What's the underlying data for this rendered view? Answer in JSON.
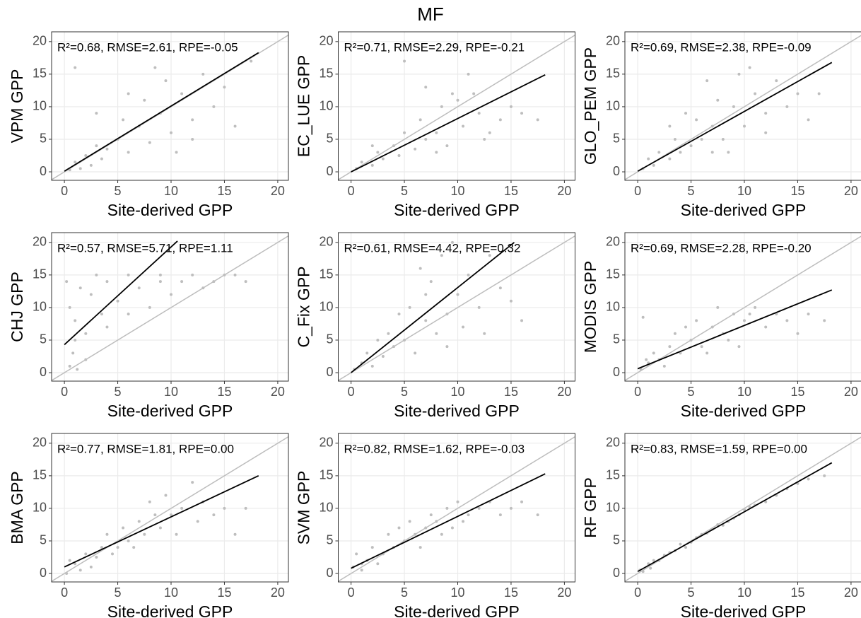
{
  "title": "MF",
  "chart_data": [
    {
      "type": "scatter",
      "ylabel": "VPM GPP",
      "xlabel": "Site-derived GPP",
      "annotation": "R²=0.68, RMSE=2.61, RPE=-0.05",
      "xlim": [
        -1.2,
        21
      ],
      "ylim": [
        -1.3,
        21.5
      ],
      "xticks": [
        0,
        5,
        10,
        15,
        20
      ],
      "yticks": [
        0,
        5,
        10,
        15,
        20
      ],
      "grid": true,
      "color": "#bebebe",
      "line_color": "#000000",
      "x": [
        0.5,
        1,
        1.5,
        2,
        2.5,
        3,
        3.5,
        4,
        5,
        5.5,
        6,
        7,
        7.5,
        8,
        9,
        9.5,
        10,
        11,
        12,
        13,
        14,
        15,
        16,
        17.5,
        3,
        6,
        8.5,
        10.5,
        12,
        1
      ],
      "y": [
        0.3,
        1.5,
        0.5,
        2.5,
        1,
        4,
        2,
        3.5,
        5,
        8,
        3,
        7,
        11,
        4.5,
        9,
        14,
        6,
        12,
        8,
        15,
        10,
        13,
        7,
        17,
        9,
        12,
        16,
        3,
        5,
        16
      ],
      "fit_x": [
        0,
        18.2
      ],
      "fit_y": [
        0.1,
        18.3
      ]
    },
    {
      "type": "scatter",
      "ylabel": "EC_LUE GPP",
      "xlabel": "Site-derived GPP",
      "annotation": "R²=0.71, RMSE=2.29, RPE=-0.21",
      "xlim": [
        -1.2,
        21
      ],
      "ylim": [
        -1.3,
        21.5
      ],
      "xticks": [
        0,
        5,
        10,
        15,
        20
      ],
      "yticks": [
        0,
        5,
        10,
        15,
        20
      ],
      "grid": true,
      "color": "#bebebe",
      "line_color": "#000000",
      "x": [
        0.5,
        1,
        2,
        2.5,
        3,
        4,
        4.5,
        5,
        6,
        6.5,
        7,
        8,
        8.5,
        9,
        10,
        10.5,
        11,
        12,
        13,
        14,
        15,
        16,
        17.5,
        5,
        8,
        9.5,
        11.5,
        2,
        7,
        12.5
      ],
      "y": [
        0.5,
        1.5,
        1,
        3,
        2,
        4,
        2.5,
        6,
        3.5,
        8,
        5,
        6,
        10,
        4,
        11,
        7,
        15,
        9,
        6,
        8,
        10,
        9,
        8,
        17,
        3,
        12,
        12,
        4,
        13,
        5
      ],
      "fit_x": [
        0,
        18.2
      ],
      "fit_y": [
        0,
        14.9
      ]
    },
    {
      "type": "scatter",
      "ylabel": "GLO_PEM GPP",
      "xlabel": "Site-derived GPP",
      "annotation": "R²=0.69, RMSE=2.38, RPE=-0.09",
      "xlim": [
        -1.2,
        21
      ],
      "ylim": [
        -1.3,
        21.5
      ],
      "xticks": [
        0,
        5,
        10,
        15,
        20
      ],
      "yticks": [
        0,
        5,
        10,
        15,
        20
      ],
      "grid": true,
      "color": "#bebebe",
      "line_color": "#000000",
      "x": [
        0.5,
        1,
        1.5,
        2,
        3,
        3.5,
        4,
        5,
        5.5,
        6,
        7,
        7.5,
        8,
        9,
        9.5,
        10,
        11,
        12,
        13,
        14,
        15,
        17,
        6.5,
        8.5,
        10.5,
        3,
        12,
        4.5,
        7,
        16
      ],
      "y": [
        0.5,
        2,
        1,
        3,
        2,
        5,
        3,
        4,
        8,
        5,
        7,
        11,
        5,
        10,
        15,
        7,
        12,
        9,
        14,
        10,
        12,
        12,
        14,
        3,
        16,
        7,
        6,
        9,
        3,
        8
      ],
      "fit_x": [
        0,
        18.2
      ],
      "fit_y": [
        0.1,
        16.8
      ]
    },
    {
      "type": "scatter",
      "ylabel": "CHJ GPP",
      "xlabel": "Site-derived GPP",
      "annotation": "R²=0.57, RMSE=5.71, RPE=1.11",
      "xlim": [
        -1.2,
        21
      ],
      "ylim": [
        -1.3,
        21.5
      ],
      "xticks": [
        0,
        5,
        10,
        15,
        20
      ],
      "yticks": [
        0,
        5,
        10,
        15,
        20
      ],
      "grid": true,
      "color": "#bebebe",
      "line_color": "#000000",
      "x": [
        0.2,
        0.5,
        0.8,
        1,
        1.2,
        1.5,
        2,
        2.5,
        3,
        3.5,
        4,
        5,
        6,
        7,
        8,
        9,
        10,
        11,
        12,
        13,
        14,
        15,
        16,
        17,
        1,
        2,
        4,
        6,
        9,
        0.5
      ],
      "y": [
        14,
        10,
        3,
        8,
        0.5,
        13,
        6,
        12,
        15,
        9,
        14,
        11,
        15,
        13,
        10,
        15,
        12,
        14,
        15,
        13,
        14,
        15,
        15,
        14,
        5,
        2,
        7,
        9,
        14,
        1
      ],
      "fit_x": [
        0,
        10.6
      ],
      "fit_y": [
        4.3,
        20.2
      ]
    },
    {
      "type": "scatter",
      "ylabel": "C_Fix GPP",
      "xlabel": "Site-derived GPP",
      "annotation": "R²=0.61, RMSE=4.42, RPE=0.32",
      "xlim": [
        -1.2,
        21
      ],
      "ylim": [
        -1.3,
        21.5
      ],
      "xticks": [
        0,
        5,
        10,
        15,
        20
      ],
      "yticks": [
        0,
        5,
        10,
        15,
        20
      ],
      "grid": true,
      "color": "#bebebe",
      "line_color": "#000000",
      "x": [
        0.3,
        1,
        1.5,
        2,
        3,
        3.5,
        4,
        5,
        5.5,
        6,
        7,
        7.5,
        8,
        8.5,
        9,
        9.5,
        10,
        11,
        12,
        13,
        14,
        15,
        16,
        4.5,
        6.5,
        9,
        10.5,
        2.5,
        7,
        12.5
      ],
      "y": [
        0.5,
        1.5,
        3,
        1,
        2.5,
        6,
        4,
        5,
        10,
        3,
        8,
        14,
        6,
        18,
        9,
        20,
        12,
        15,
        10,
        18,
        13,
        11,
        8,
        9,
        16,
        4,
        7,
        5,
        12,
        6
      ],
      "fit_x": [
        0,
        15.3
      ],
      "fit_y": [
        0,
        20
      ]
    },
    {
      "type": "scatter",
      "ylabel": "MODIS GPP",
      "xlabel": "Site-derived GPP",
      "annotation": "R²=0.69, RMSE=2.28, RPE=-0.20",
      "xlim": [
        -1.2,
        21
      ],
      "ylim": [
        -1.3,
        21.5
      ],
      "xticks": [
        0,
        5,
        10,
        15,
        20
      ],
      "yticks": [
        0,
        5,
        10,
        15,
        20
      ],
      "grid": true,
      "color": "#bebebe",
      "line_color": "#000000",
      "x": [
        0.3,
        0.5,
        1,
        1.5,
        2,
        3,
        3.5,
        4,
        5,
        5.5,
        6,
        7,
        7.5,
        8,
        9,
        9.5,
        10,
        11,
        12,
        13,
        14,
        15,
        16,
        17.5,
        2.5,
        6.5,
        8.5,
        10.5,
        4.5,
        0.8
      ],
      "y": [
        0.5,
        8.5,
        1.5,
        3,
        2,
        4,
        6,
        3,
        5,
        8,
        4,
        7,
        10,
        6,
        9,
        4,
        8,
        10,
        7,
        9,
        8,
        6,
        9,
        8,
        1,
        3,
        5,
        9,
        7,
        2
      ],
      "fit_x": [
        0,
        18.2
      ],
      "fit_y": [
        0.6,
        12.7
      ]
    },
    {
      "type": "scatter",
      "ylabel": "BMA GPP",
      "xlabel": "Site-derived GPP",
      "annotation": "R²=0.77, RMSE=1.81, RPE=0.00",
      "xlim": [
        -1.2,
        21
      ],
      "ylim": [
        -1.3,
        21.5
      ],
      "xticks": [
        0,
        5,
        10,
        15,
        20
      ],
      "yticks": [
        0,
        5,
        10,
        15,
        20
      ],
      "grid": true,
      "color": "#bebebe",
      "line_color": "#000000",
      "x": [
        0.2,
        0.5,
        1,
        1.5,
        2,
        3,
        3.5,
        4,
        5,
        5.5,
        6,
        7,
        7.5,
        8,
        9,
        9.5,
        10,
        11,
        12,
        13,
        14,
        15,
        16,
        17,
        2.5,
        6.5,
        8.5,
        10.5,
        4.5,
        12.5
      ],
      "y": [
        0,
        2,
        1.5,
        0.5,
        3,
        2.5,
        4,
        6,
        4,
        7,
        5,
        8,
        6,
        11,
        7,
        12,
        9,
        10,
        14,
        11,
        9,
        10,
        6,
        10,
        1,
        4,
        9,
        6,
        3,
        8
      ],
      "fit_x": [
        0,
        18.2
      ],
      "fit_y": [
        1.0,
        15.0
      ]
    },
    {
      "type": "scatter",
      "ylabel": "SVM GPP",
      "xlabel": "Site-derived GPP",
      "annotation": "R²=0.82, RMSE=1.62, RPE=-0.03",
      "xlim": [
        -1.2,
        21
      ],
      "ylim": [
        -1.3,
        21.5
      ],
      "xticks": [
        0,
        5,
        10,
        15,
        20
      ],
      "yticks": [
        0,
        5,
        10,
        15,
        20
      ],
      "grid": true,
      "color": "#bebebe",
      "line_color": "#000000",
      "x": [
        0.2,
        0.5,
        1,
        1.5,
        2,
        3,
        3.5,
        4,
        5,
        5.5,
        6,
        7,
        7.5,
        8,
        9,
        9.5,
        10,
        11,
        12,
        13,
        14,
        15,
        16,
        17.5,
        2.5,
        6.5,
        8.5,
        10.5,
        4.5,
        1
      ],
      "y": [
        1,
        3,
        1.5,
        2,
        4,
        3,
        6,
        4,
        5,
        8,
        6,
        7,
        9,
        8,
        10,
        7,
        11,
        9,
        10,
        11,
        9,
        10,
        11,
        9,
        1.5,
        4,
        6,
        8,
        7,
        0.5
      ],
      "fit_x": [
        0,
        18.2
      ],
      "fit_y": [
        0.8,
        15.3
      ]
    },
    {
      "type": "scatter",
      "ylabel": "RF GPP",
      "xlabel": "Site-derived GPP",
      "annotation": "R²=0.83, RMSE=1.59, RPE=0.00",
      "xlim": [
        -1.2,
        21
      ],
      "ylim": [
        -1.3,
        21.5
      ],
      "xticks": [
        0,
        5,
        10,
        15,
        20
      ],
      "yticks": [
        0,
        5,
        10,
        15,
        20
      ],
      "grid": true,
      "color": "#bebebe",
      "line_color": "#000000",
      "x": [
        0.2,
        0.5,
        1,
        1.5,
        2,
        3,
        3.5,
        4,
        5,
        5.5,
        6,
        7,
        7.5,
        8,
        9,
        9.5,
        10,
        11,
        12,
        13,
        14,
        15,
        16,
        17.5,
        2.5,
        6.5,
        8.5,
        10.5,
        4.5,
        1.2
      ],
      "y": [
        0.5,
        0.3,
        1.5,
        2,
        2,
        3.2,
        3.5,
        4.5,
        4.8,
        5.5,
        6,
        6.8,
        7.5,
        7.4,
        8.5,
        9,
        9.8,
        10.5,
        11,
        12,
        13,
        13.8,
        14.5,
        15,
        2.8,
        6.2,
        8,
        10.2,
        4,
        0.8
      ],
      "fit_x": [
        0,
        18.2
      ],
      "fit_y": [
        0.3,
        17.0
      ]
    }
  ]
}
